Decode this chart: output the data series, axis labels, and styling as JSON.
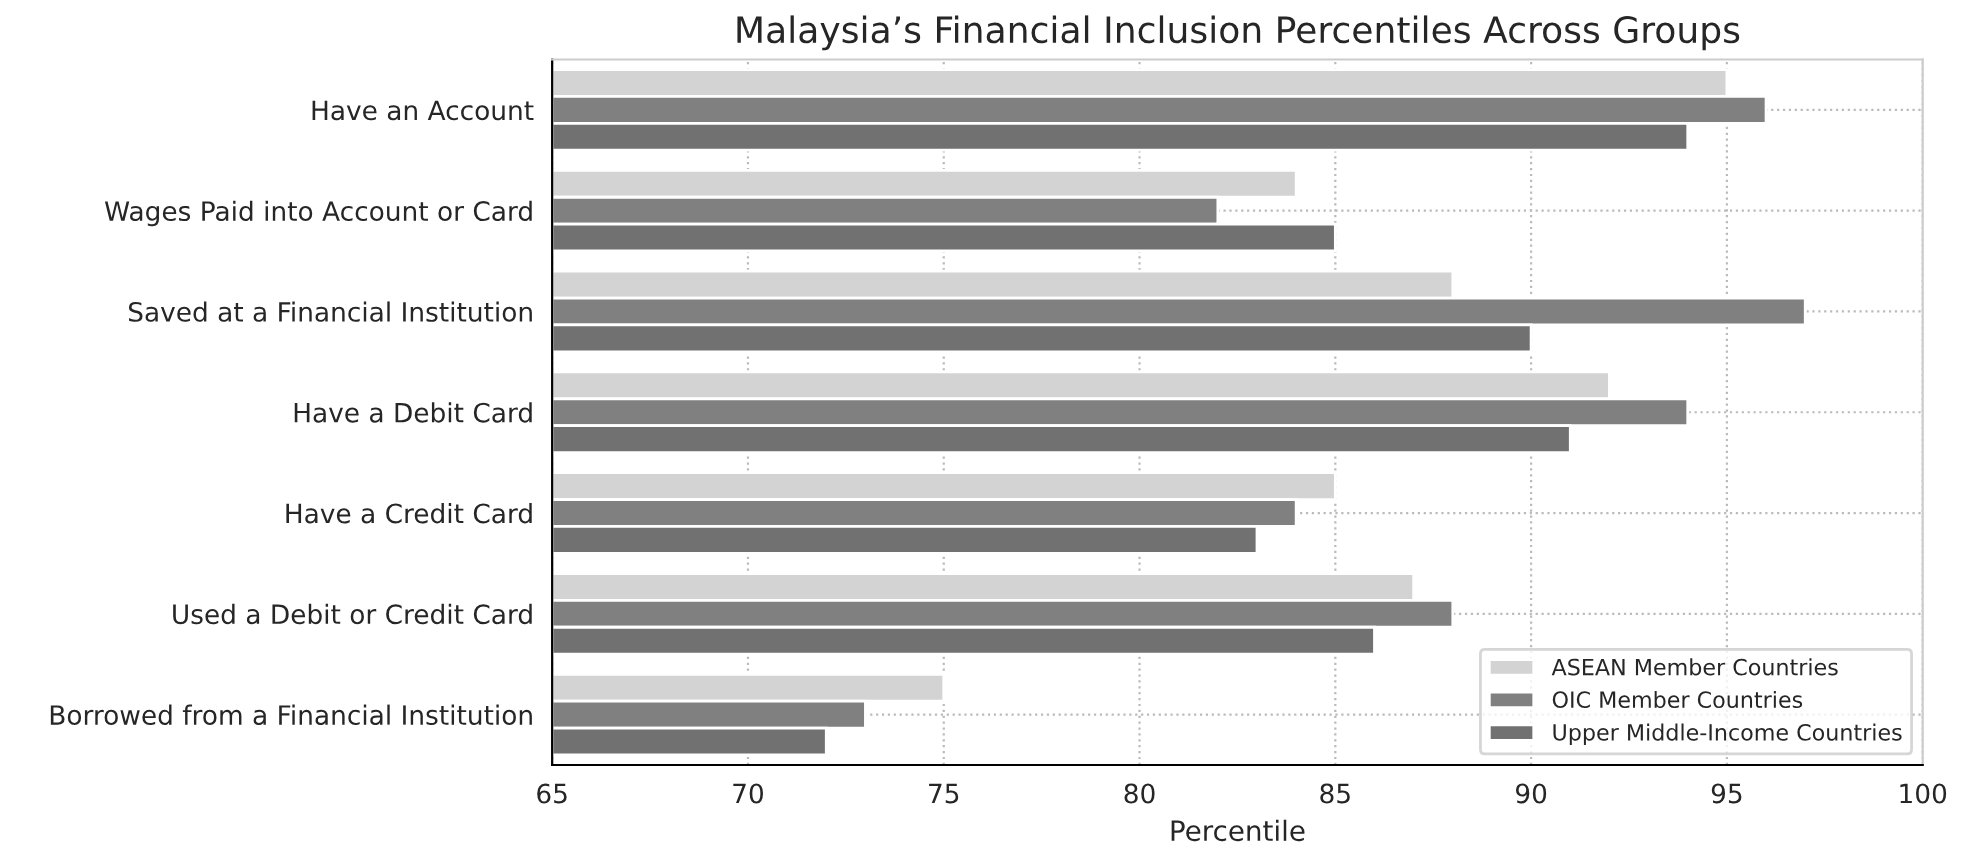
{
  "chart_data": {
    "type": "bar",
    "orientation": "horizontal",
    "title": "Malaysia’s Financial Inclusion Percentiles Across Groups",
    "xlabel": "Percentile",
    "categories": [
      "Have an Account",
      "Wages Paid into Account or Card",
      "Saved at a Financial Institution",
      "Have a Debit Card",
      "Have a Credit Card",
      "Used a Debit or Credit Card",
      "Borrowed from a Financial Institution"
    ],
    "series": [
      {
        "name": "ASEAN Member Countries",
        "color": "#d3d3d3",
        "values": [
          95,
          84,
          88,
          92,
          85,
          87,
          75
        ]
      },
      {
        "name": "OIC Member Countries",
        "color": "#808080",
        "values": [
          96,
          82,
          97,
          94,
          84,
          88,
          73
        ]
      },
      {
        "name": "Upper Middle-Income Countries",
        "color": "#717171",
        "values": [
          94,
          85,
          90,
          91,
          83,
          86,
          72
        ]
      }
    ],
    "xlim": [
      65,
      100
    ],
    "xticks": [
      65,
      70,
      75,
      80,
      85,
      90,
      95,
      100
    ],
    "grid": true,
    "legend": "bottom right"
  }
}
